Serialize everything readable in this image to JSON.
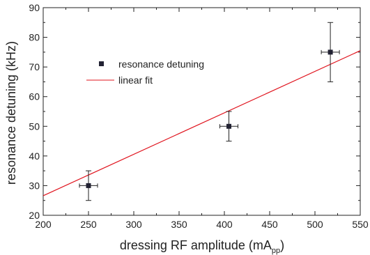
{
  "chart_data": {
    "type": "scatter",
    "xlabel": "dressing RF amplitude (mA",
    "xlabel_sub": "pp",
    "xlabel_end": ")",
    "ylabel": "resonance detuning (kHz)",
    "xlim": [
      200,
      550
    ],
    "ylim": [
      20,
      90
    ],
    "xticks": [
      200,
      250,
      300,
      350,
      400,
      450,
      500,
      550
    ],
    "yticks": [
      20,
      30,
      40,
      50,
      60,
      70,
      80,
      90
    ],
    "xtick_labels": [
      "200",
      "250",
      "300",
      "350",
      "400",
      "450",
      "500",
      "550"
    ],
    "ytick_labels": [
      "20",
      "30",
      "40",
      "50",
      "60",
      "70",
      "80",
      "90"
    ],
    "grid": false,
    "legend_position": "upper-left",
    "series": [
      {
        "name": "resonance detuning",
        "kind": "points_with_errorbars",
        "color": "#222233",
        "points": [
          {
            "x": 250,
            "y": 30,
            "xerr": 10,
            "yerr": 5
          },
          {
            "x": 405,
            "y": 50,
            "xerr": 10,
            "yerr": 5
          },
          {
            "x": 517,
            "y": 75,
            "xerr": 10,
            "yerr": 10
          }
        ]
      },
      {
        "name": "linear fit",
        "kind": "line",
        "color": "#e0141e",
        "points": [
          {
            "x": 200,
            "y": 26.6
          },
          {
            "x": 550,
            "y": 75.5
          }
        ]
      }
    ]
  }
}
